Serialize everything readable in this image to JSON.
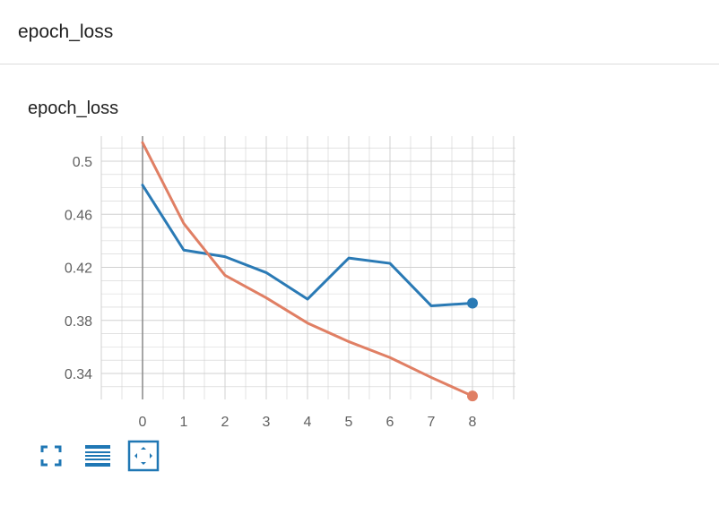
{
  "section": {
    "title": "epoch_loss"
  },
  "card": {
    "title": "epoch_loss"
  },
  "colors": {
    "train": "#2a7ab5",
    "validation": "#e07f64",
    "grid": "#d0d0d0",
    "zero_axis": "#888888",
    "icon": "#1f77b4"
  },
  "chart_data": {
    "type": "line",
    "title": "epoch_loss",
    "xlabel": "",
    "ylabel": "",
    "x": [
      0,
      1,
      2,
      3,
      4,
      5,
      6,
      7,
      8
    ],
    "xlim": [
      -1,
      9
    ],
    "ylim": [
      0.32,
      0.52
    ],
    "x_ticks": [
      "0",
      "1",
      "2",
      "3",
      "4",
      "5",
      "6",
      "7",
      "8"
    ],
    "y_ticks": [
      "0.34",
      "0.38",
      "0.42",
      "0.46",
      "0.5"
    ],
    "grid": true,
    "series": [
      {
        "name": "series-blue",
        "color": "#2a7ab5",
        "values": [
          0.482,
          0.433,
          0.428,
          0.416,
          0.396,
          0.427,
          0.423,
          0.391,
          0.393
        ]
      },
      {
        "name": "series-orange",
        "color": "#e07f64",
        "values": [
          0.514,
          0.453,
          0.414,
          0.397,
          0.378,
          0.364,
          0.352,
          0.337,
          0.323
        ]
      }
    ]
  },
  "toolbar": {
    "buttons": [
      {
        "name": "fullscreen-button",
        "icon": "fullscreen-icon"
      },
      {
        "name": "toggle-log-scale-button",
        "icon": "lines-icon"
      },
      {
        "name": "fit-domain-button",
        "icon": "fit-domain-icon"
      }
    ]
  }
}
